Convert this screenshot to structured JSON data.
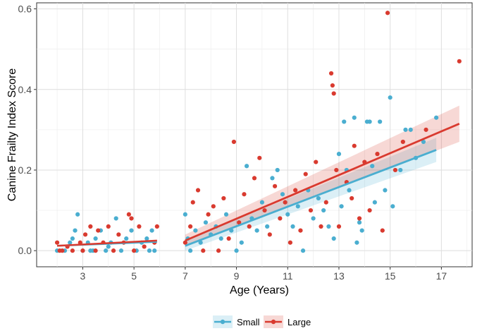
{
  "chart_data": {
    "type": "scatter",
    "xlabel": "Age (Years)",
    "ylabel": "Canine Frailty Index Score",
    "xlim": [
      1.2,
      18.2
    ],
    "ylim": [
      -0.04,
      0.615
    ],
    "x_ticks": [
      3,
      5,
      7,
      9,
      11,
      13,
      15,
      17
    ],
    "y_ticks": [
      0.0,
      0.2,
      0.4,
      0.6
    ],
    "x_tick_labels": [
      "3",
      "5",
      "7",
      "9",
      "11",
      "13",
      "15",
      "17"
    ],
    "y_tick_labels": [
      "0.0",
      "0.2",
      "0.4",
      "0.6"
    ],
    "grid": true,
    "legend_position": "bottom",
    "series": [
      {
        "name": "Small",
        "color": "#4aaed0",
        "points": [
          [
            2.0,
            0.0
          ],
          [
            2.3,
            0.0
          ],
          [
            2.5,
            0.02
          ],
          [
            2.6,
            0.03
          ],
          [
            2.7,
            0.05
          ],
          [
            2.8,
            0.09
          ],
          [
            3.0,
            0.0
          ],
          [
            3.2,
            0.02
          ],
          [
            3.4,
            0.0
          ],
          [
            3.5,
            0.03
          ],
          [
            3.7,
            0.05
          ],
          [
            3.9,
            0.0
          ],
          [
            4.1,
            0.02
          ],
          [
            4.3,
            0.08
          ],
          [
            4.5,
            0.0
          ],
          [
            4.7,
            0.03
          ],
          [
            4.9,
            0.05
          ],
          [
            5.1,
            0.0
          ],
          [
            5.3,
            0.02
          ],
          [
            5.5,
            0.03
          ],
          [
            5.7,
            0.05
          ],
          [
            5.8,
            0.0
          ],
          [
            5.6,
            0.0
          ],
          [
            3.3,
            0.0
          ],
          [
            4.0,
            0.01
          ],
          [
            7.0,
            0.09
          ],
          [
            7.1,
            0.03
          ],
          [
            7.2,
            0.0
          ],
          [
            7.4,
            0.05
          ],
          [
            7.6,
            0.02
          ],
          [
            7.8,
            0.07
          ],
          [
            8.0,
            0.04
          ],
          [
            8.2,
            0.06
          ],
          [
            8.4,
            0.03
          ],
          [
            8.6,
            0.09
          ],
          [
            8.8,
            0.05
          ],
          [
            9.0,
            0.0
          ],
          [
            9.2,
            0.02
          ],
          [
            9.4,
            0.21
          ],
          [
            9.6,
            0.08
          ],
          [
            9.8,
            0.05
          ],
          [
            10.0,
            0.12
          ],
          [
            10.2,
            0.06
          ],
          [
            10.4,
            0.18
          ],
          [
            10.6,
            0.2
          ],
          [
            10.8,
            0.14
          ],
          [
            11.0,
            0.09
          ],
          [
            11.2,
            0.06
          ],
          [
            11.4,
            0.11
          ],
          [
            11.6,
            0.0
          ],
          [
            11.8,
            0.15
          ],
          [
            12.0,
            0.08
          ],
          [
            12.2,
            0.13
          ],
          [
            12.4,
            0.1
          ],
          [
            12.6,
            0.06
          ],
          [
            12.8,
            0.03
          ],
          [
            13.0,
            0.24
          ],
          [
            13.1,
            0.11
          ],
          [
            13.2,
            0.32
          ],
          [
            13.3,
            0.2
          ],
          [
            13.4,
            0.15
          ],
          [
            13.6,
            0.33
          ],
          [
            13.7,
            0.02
          ],
          [
            13.8,
            0.07
          ],
          [
            13.9,
            0.05
          ],
          [
            14.1,
            0.32
          ],
          [
            14.2,
            0.32
          ],
          [
            14.3,
            0.21
          ],
          [
            14.4,
            0.12
          ],
          [
            14.6,
            0.32
          ],
          [
            14.8,
            0.15
          ],
          [
            15.0,
            0.38
          ],
          [
            15.1,
            0.11
          ],
          [
            15.4,
            0.2
          ],
          [
            15.6,
            0.3
          ],
          [
            15.8,
            0.3
          ],
          [
            16.0,
            0.23
          ],
          [
            16.3,
            0.27
          ],
          [
            16.8,
            0.33
          ]
        ],
        "fit": [
          [
            7.0,
            0.012
          ],
          [
            16.8,
            0.25
          ]
        ],
        "ci_low": [
          [
            7.0,
            0.0
          ],
          [
            16.8,
            0.22
          ]
        ],
        "ci_high": [
          [
            7.0,
            0.025
          ],
          [
            16.8,
            0.28
          ]
        ]
      },
      {
        "name": "Large",
        "color": "#d93a2f",
        "points": [
          [
            2.0,
            0.02
          ],
          [
            2.1,
            0.0
          ],
          [
            2.2,
            0.0
          ],
          [
            2.4,
            0.01
          ],
          [
            2.6,
            0.0
          ],
          [
            2.9,
            0.02
          ],
          [
            3.1,
            0.04
          ],
          [
            3.3,
            0.06
          ],
          [
            3.5,
            0.0
          ],
          [
            3.6,
            0.05
          ],
          [
            3.8,
            0.02
          ],
          [
            4.0,
            0.06
          ],
          [
            4.2,
            0.0
          ],
          [
            4.4,
            0.04
          ],
          [
            4.6,
            0.02
          ],
          [
            4.8,
            0.09
          ],
          [
            5.0,
            0.0
          ],
          [
            5.2,
            0.06
          ],
          [
            5.4,
            0.01
          ],
          [
            5.9,
            0.06
          ],
          [
            3.0,
            0.0
          ],
          [
            4.9,
            0.08
          ],
          [
            5.8,
            0.02
          ],
          [
            7.0,
            0.02
          ],
          [
            7.2,
            0.06
          ],
          [
            7.3,
            0.12
          ],
          [
            7.5,
            0.15
          ],
          [
            7.7,
            0.0
          ],
          [
            7.9,
            0.09
          ],
          [
            8.1,
            0.11
          ],
          [
            8.3,
            0.0
          ],
          [
            8.5,
            0.13
          ],
          [
            8.7,
            0.03
          ],
          [
            8.9,
            0.27
          ],
          [
            9.1,
            0.07
          ],
          [
            9.3,
            0.14
          ],
          [
            9.5,
            0.06
          ],
          [
            9.7,
            0.18
          ],
          [
            9.9,
            0.23
          ],
          [
            10.1,
            0.1
          ],
          [
            10.3,
            0.04
          ],
          [
            10.5,
            0.16
          ],
          [
            10.7,
            0.08
          ],
          [
            10.9,
            0.12
          ],
          [
            11.1,
            0.02
          ],
          [
            11.3,
            0.15
          ],
          [
            11.5,
            0.05
          ],
          [
            11.7,
            0.19
          ],
          [
            11.9,
            0.1
          ],
          [
            12.1,
            0.22
          ],
          [
            12.3,
            0.06
          ],
          [
            12.5,
            0.12
          ],
          [
            12.7,
            0.44
          ],
          [
            12.75,
            0.41
          ],
          [
            12.8,
            0.39
          ],
          [
            12.9,
            0.2
          ],
          [
            13.0,
            0.06
          ],
          [
            13.3,
            0.17
          ],
          [
            13.5,
            0.13
          ],
          [
            13.6,
            0.26
          ],
          [
            13.8,
            0.08
          ],
          [
            14.0,
            0.22
          ],
          [
            14.2,
            0.1
          ],
          [
            14.5,
            0.24
          ],
          [
            14.7,
            0.05
          ],
          [
            14.9,
            0.59
          ],
          [
            15.2,
            0.2
          ],
          [
            15.5,
            0.27
          ],
          [
            16.4,
            0.3
          ],
          [
            17.7,
            0.47
          ]
        ],
        "fit": [
          [
            7.0,
            0.025
          ],
          [
            17.7,
            0.315
          ]
        ],
        "ci_low": [
          [
            7.0,
            0.01
          ],
          [
            17.7,
            0.27
          ]
        ],
        "ci_high": [
          [
            7.0,
            0.04
          ],
          [
            17.7,
            0.36
          ]
        ]
      }
    ]
  }
}
